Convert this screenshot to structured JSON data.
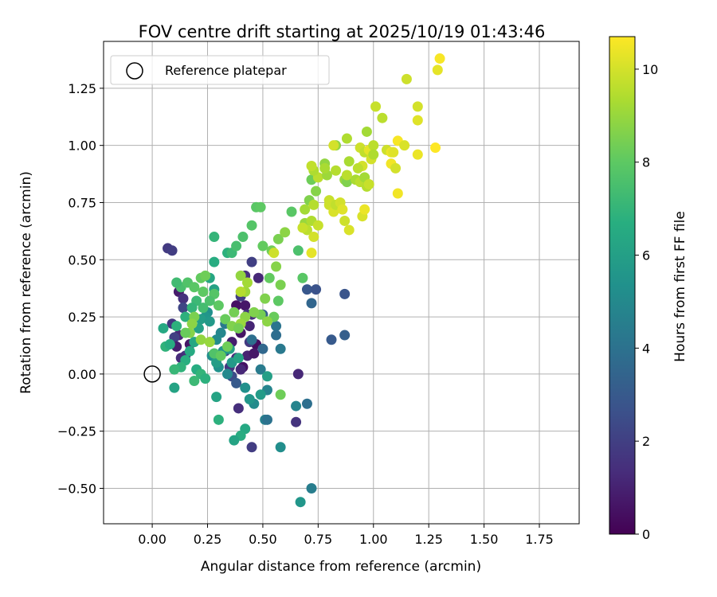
{
  "chart_data": {
    "type": "scatter",
    "title": "FOV centre drift starting at 2025/10/19 01:43:46",
    "xlabel": "Angular distance from reference (arcmin)",
    "ylabel": "Rotation from reference (arcmin)",
    "xlim": [
      -0.22,
      1.93
    ],
    "ylim": [
      -0.655,
      1.455
    ],
    "xticks": [
      0.0,
      0.25,
      0.5,
      0.75,
      1.0,
      1.25,
      1.5,
      1.75
    ],
    "xtick_labels": [
      "0.00",
      "0.25",
      "0.50",
      "0.75",
      "1.00",
      "1.25",
      "1.50",
      "1.75"
    ],
    "yticks": [
      -0.5,
      -0.25,
      0.0,
      0.25,
      0.5,
      0.75,
      1.0,
      1.25
    ],
    "ytick_labels": [
      "−0.50",
      "−0.25",
      "0.00",
      "0.25",
      "0.50",
      "0.75",
      "1.00",
      "1.25"
    ],
    "grid": true,
    "legend": {
      "placement": "top-left",
      "entries": [
        "Reference platepar"
      ]
    },
    "reference_point": {
      "x": 0.0,
      "y": 0.0,
      "label": "Reference platepar"
    },
    "colorbar": {
      "label": "Hours from first FF file",
      "range": [
        0,
        10.7
      ],
      "ticks": [
        0,
        2,
        4,
        6,
        8,
        10
      ],
      "tick_labels": [
        "0",
        "2",
        "4",
        "6",
        "8",
        "10"
      ],
      "colormap": "viridis"
    },
    "points": [
      [
        0.07,
        0.55,
        1.8
      ],
      [
        0.09,
        0.54,
        1.9
      ],
      [
        0.12,
        0.36,
        0.8
      ],
      [
        0.14,
        0.33,
        1.5
      ],
      [
        0.12,
        0.17,
        1.2
      ],
      [
        0.15,
        0.08,
        1.6
      ],
      [
        0.1,
        0.16,
        2.0
      ],
      [
        0.11,
        0.12,
        0.9
      ],
      [
        0.13,
        0.07,
        1.3
      ],
      [
        0.17,
        0.13,
        0.6
      ],
      [
        0.09,
        0.22,
        1.7
      ],
      [
        0.14,
        0.29,
        2.2
      ],
      [
        0.38,
        0.3,
        0.5
      ],
      [
        0.42,
        0.3,
        0.7
      ],
      [
        0.44,
        0.21,
        1.1
      ],
      [
        0.4,
        0.18,
        0.6
      ],
      [
        0.36,
        0.14,
        0.9
      ],
      [
        0.38,
        0.07,
        1.3
      ],
      [
        0.41,
        0.03,
        0.5
      ],
      [
        0.43,
        0.08,
        1.0
      ],
      [
        0.47,
        0.13,
        0.4
      ],
      [
        0.44,
        0.14,
        1.8
      ],
      [
        0.46,
        0.09,
        0.7
      ],
      [
        0.4,
        0.02,
        1.2
      ],
      [
        0.45,
        0.49,
        2.0
      ],
      [
        0.42,
        0.43,
        1.5
      ],
      [
        0.48,
        0.42,
        1.2
      ],
      [
        0.4,
        0.34,
        1.9
      ],
      [
        0.43,
        0.26,
        1.6
      ],
      [
        0.45,
        0.26,
        1.4
      ],
      [
        0.39,
        -0.15,
        1.4
      ],
      [
        0.45,
        -0.32,
        1.9
      ],
      [
        0.35,
        0.03,
        1.7
      ],
      [
        0.33,
        0.1,
        2.3
      ],
      [
        0.36,
        -0.01,
        2.5
      ],
      [
        0.38,
        -0.04,
        3.0
      ],
      [
        0.66,
        0.0,
        1.2
      ],
      [
        0.65,
        -0.21,
        1.6
      ],
      [
        0.7,
        0.37,
        2.9
      ],
      [
        0.74,
        0.37,
        2.7
      ],
      [
        0.87,
        0.35,
        2.8
      ],
      [
        0.72,
        0.31,
        3.5
      ],
      [
        0.81,
        0.15,
        3.0
      ],
      [
        0.87,
        0.17,
        3.2
      ],
      [
        0.56,
        0.21,
        4.1
      ],
      [
        0.56,
        0.17,
        3.8
      ],
      [
        0.58,
        0.11,
        4.3
      ],
      [
        0.5,
        0.26,
        3.3
      ],
      [
        0.5,
        0.11,
        3.6
      ],
      [
        0.49,
        0.02,
        4.4
      ],
      [
        0.52,
        -0.07,
        4.8
      ],
      [
        0.51,
        -0.2,
        4.6
      ],
      [
        0.52,
        -0.2,
        4.0
      ],
      [
        0.46,
        -0.13,
        5.1
      ],
      [
        0.42,
        -0.06,
        5.3
      ],
      [
        0.44,
        -0.11,
        5.6
      ],
      [
        0.65,
        -0.14,
        4.8
      ],
      [
        0.7,
        -0.13,
        3.9
      ],
      [
        0.72,
        -0.5,
        4.5
      ],
      [
        0.67,
        -0.56,
        5.6
      ],
      [
        0.58,
        -0.32,
        5.2
      ],
      [
        0.49,
        -0.09,
        5.8
      ],
      [
        0.52,
        -0.01,
        6.0
      ],
      [
        0.42,
        -0.24,
        6.4
      ],
      [
        0.4,
        -0.27,
        6.6
      ],
      [
        0.37,
        -0.29,
        6.2
      ],
      [
        0.45,
        0.15,
        3.9
      ],
      [
        0.33,
        0.22,
        4.3
      ],
      [
        0.31,
        0.18,
        4.9
      ],
      [
        0.29,
        0.15,
        5.1
      ],
      [
        0.27,
        0.08,
        5.3
      ],
      [
        0.32,
        0.1,
        5.5
      ],
      [
        0.36,
        0.05,
        5.7
      ],
      [
        0.35,
        0.11,
        6.0
      ],
      [
        0.39,
        0.07,
        6.2
      ],
      [
        0.34,
        0.0,
        5.0
      ],
      [
        0.3,
        0.03,
        5.4
      ],
      [
        0.29,
        0.05,
        5.9
      ],
      [
        0.25,
        0.27,
        5.3
      ],
      [
        0.24,
        0.25,
        5.6
      ],
      [
        0.22,
        0.24,
        5.9
      ],
      [
        0.21,
        0.2,
        6.1
      ],
      [
        0.19,
        0.14,
        6.3
      ],
      [
        0.17,
        0.1,
        6.5
      ],
      [
        0.15,
        0.06,
        6.7
      ],
      [
        0.13,
        0.03,
        6.9
      ],
      [
        0.2,
        0.02,
        6.6
      ],
      [
        0.22,
        0.0,
        7.0
      ],
      [
        0.19,
        -0.03,
        7.2
      ],
      [
        0.24,
        -0.02,
        6.8
      ],
      [
        0.11,
        0.21,
        6.8
      ],
      [
        0.05,
        0.2,
        6.4
      ],
      [
        0.06,
        0.12,
        6.9
      ],
      [
        0.1,
        0.02,
        7.1
      ],
      [
        0.1,
        -0.06,
        6.2
      ],
      [
        0.08,
        0.13,
        6.6
      ],
      [
        0.26,
        0.23,
        5.7
      ],
      [
        0.28,
        0.37,
        6.1
      ],
      [
        0.26,
        0.42,
        6.3
      ],
      [
        0.28,
        0.49,
        6.6
      ],
      [
        0.28,
        0.6,
        7.0
      ],
      [
        0.34,
        0.53,
        6.8
      ],
      [
        0.36,
        0.53,
        7.2
      ],
      [
        0.38,
        0.56,
        7.5
      ],
      [
        0.41,
        0.6,
        7.6
      ],
      [
        0.45,
        0.65,
        7.8
      ],
      [
        0.47,
        0.73,
        7.9
      ],
      [
        0.49,
        0.73,
        8.0
      ],
      [
        0.29,
        -0.1,
        6.2
      ],
      [
        0.3,
        -0.2,
        6.8
      ],
      [
        0.5,
        0.56,
        8.1
      ],
      [
        0.54,
        0.54,
        8.3
      ],
      [
        0.57,
        0.59,
        8.5
      ],
      [
        0.56,
        0.47,
        8.7
      ],
      [
        0.58,
        0.39,
        8.5
      ],
      [
        0.53,
        0.42,
        8.1
      ],
      [
        0.57,
        0.32,
        8.0
      ],
      [
        0.55,
        0.25,
        8.2
      ],
      [
        0.49,
        0.26,
        8.4
      ],
      [
        0.46,
        0.27,
        8.6
      ],
      [
        0.42,
        0.25,
        8.8
      ],
      [
        0.4,
        0.22,
        9.0
      ],
      [
        0.37,
        0.27,
        8.4
      ],
      [
        0.33,
        0.24,
        8.2
      ],
      [
        0.3,
        0.3,
        8.0
      ],
      [
        0.28,
        0.35,
        7.8
      ],
      [
        0.26,
        0.32,
        7.6
      ],
      [
        0.23,
        0.29,
        7.4
      ],
      [
        0.2,
        0.32,
        7.2
      ],
      [
        0.18,
        0.29,
        7.0
      ],
      [
        0.15,
        0.25,
        6.8
      ],
      [
        0.13,
        0.38,
        7.5
      ],
      [
        0.11,
        0.4,
        7.3
      ],
      [
        0.16,
        0.4,
        7.7
      ],
      [
        0.19,
        0.38,
        7.9
      ],
      [
        0.22,
        0.42,
        8.1
      ],
      [
        0.24,
        0.43,
        8.3
      ],
      [
        0.23,
        0.36,
        8.0
      ],
      [
        0.19,
        0.25,
        8.5
      ],
      [
        0.17,
        0.18,
        8.7
      ],
      [
        0.15,
        0.18,
        8.2
      ],
      [
        0.18,
        0.22,
        8.8
      ],
      [
        0.22,
        0.15,
        8.9
      ],
      [
        0.26,
        0.14,
        9.0
      ],
      [
        0.28,
        0.09,
        7.7
      ],
      [
        0.31,
        0.08,
        8.1
      ],
      [
        0.34,
        0.12,
        8.3
      ],
      [
        0.36,
        0.21,
        8.6
      ],
      [
        0.39,
        0.2,
        8.4
      ],
      [
        0.42,
        0.36,
        9.1
      ],
      [
        0.4,
        0.36,
        9.5
      ],
      [
        0.4,
        0.43,
        8.9
      ],
      [
        0.43,
        0.4,
        9.2
      ],
      [
        0.51,
        0.33,
        8.6
      ],
      [
        0.52,
        0.23,
        8.8
      ],
      [
        0.58,
        -0.09,
        8.3
      ],
      [
        0.6,
        0.62,
        8.8
      ],
      [
        0.63,
        0.71,
        7.9
      ],
      [
        0.66,
        0.54,
        7.6
      ],
      [
        0.68,
        0.42,
        7.9
      ],
      [
        0.69,
        0.66,
        9.0
      ],
      [
        0.69,
        0.72,
        9.2
      ],
      [
        0.71,
        0.76,
        8.6
      ],
      [
        0.72,
        0.85,
        8.3
      ],
      [
        0.74,
        0.8,
        8.7
      ],
      [
        0.72,
        0.67,
        9.4
      ],
      [
        0.7,
        0.63,
        9.6
      ],
      [
        0.73,
        0.6,
        10.0
      ],
      [
        0.72,
        0.53,
        10.3
      ],
      [
        0.75,
        0.65,
        9.8
      ],
      [
        0.73,
        0.74,
        9.5
      ],
      [
        0.75,
        0.86,
        9.6
      ],
      [
        0.73,
        0.89,
        9.4
      ],
      [
        0.72,
        0.91,
        9.7
      ],
      [
        0.79,
        0.87,
        9.1
      ],
      [
        0.78,
        0.92,
        8.9
      ],
      [
        0.78,
        0.9,
        9.3
      ],
      [
        0.8,
        0.76,
        9.8
      ],
      [
        0.8,
        0.74,
        9.9
      ],
      [
        0.82,
        0.71,
        10.1
      ],
      [
        0.83,
        0.74,
        9.7
      ],
      [
        0.85,
        0.75,
        10.0
      ],
      [
        0.86,
        0.72,
        10.2
      ],
      [
        0.83,
        0.89,
        9.5
      ],
      [
        0.87,
        0.85,
        9.0
      ],
      [
        0.88,
        0.84,
        8.6
      ],
      [
        0.89,
        0.93,
        9.3
      ],
      [
        0.88,
        0.87,
        9.6
      ],
      [
        0.83,
        1.0,
        8.9
      ],
      [
        0.88,
        1.03,
        9.4
      ],
      [
        0.87,
        0.67,
        9.9
      ],
      [
        0.89,
        0.63,
        10.1
      ],
      [
        0.92,
        0.85,
        9.3
      ],
      [
        0.94,
        0.84,
        9.6
      ],
      [
        0.96,
        0.86,
        9.2
      ],
      [
        0.95,
        0.91,
        10.0
      ],
      [
        0.97,
        0.82,
        9.5
      ],
      [
        0.98,
        0.83,
        9.8
      ],
      [
        0.95,
        0.69,
        10.1
      ],
      [
        0.96,
        0.72,
        10.4
      ],
      [
        0.94,
        0.99,
        9.9
      ],
      [
        0.96,
        0.97,
        9.7
      ],
      [
        0.98,
        0.98,
        10.3
      ],
      [
        0.99,
        0.94,
        10.0
      ],
      [
        1.0,
        1.0,
        9.6
      ],
      [
        1.0,
        0.96,
        9.4
      ],
      [
        0.97,
        1.06,
        9.2
      ],
      [
        1.01,
        1.17,
        9.8
      ],
      [
        1.04,
        1.12,
        9.6
      ],
      [
        1.06,
        0.98,
        9.9
      ],
      [
        1.08,
        0.97,
        10.4
      ],
      [
        1.08,
        0.92,
        10.5
      ],
      [
        1.09,
        0.97,
        10.2
      ],
      [
        1.1,
        0.9,
        10.0
      ],
      [
        1.11,
        1.02,
        10.6
      ],
      [
        1.11,
        0.79,
        10.5
      ],
      [
        1.14,
        1.0,
        10.1
      ],
      [
        1.15,
        1.29,
        9.9
      ],
      [
        1.2,
        1.17,
        10.0
      ],
      [
        1.2,
        1.11,
        10.2
      ],
      [
        1.2,
        0.96,
        10.4
      ],
      [
        1.28,
        0.99,
        10.7
      ],
      [
        1.29,
        1.33,
        10.3
      ],
      [
        1.3,
        1.38,
        10.6
      ],
      [
        0.55,
        0.53,
        9.9
      ],
      [
        0.68,
        0.64,
        9.8
      ],
      [
        0.82,
        1.0,
        10.0
      ],
      [
        0.93,
        0.9,
        9.6
      ]
    ]
  }
}
